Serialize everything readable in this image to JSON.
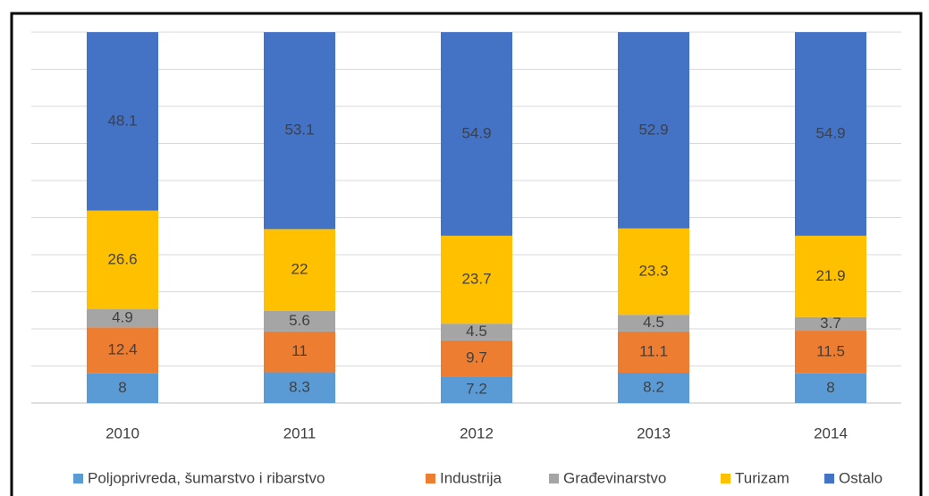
{
  "chart_data": {
    "type": "stacked_bar",
    "categories": [
      "2010",
      "2011",
      "2012",
      "2013",
      "2014"
    ],
    "series": [
      {
        "name": "Poljoprivreda, šumarstvo i ribarstvo",
        "color": "#5b9bd5",
        "values": [
          8,
          8.3,
          7.2,
          8.2,
          8
        ]
      },
      {
        "name": "Industrija",
        "color": "#ed7d31",
        "values": [
          12.4,
          11,
          9.7,
          11.1,
          11.5
        ]
      },
      {
        "name": "Građevinarstvo",
        "color": "#a5a5a5",
        "values": [
          4.9,
          5.6,
          4.5,
          4.5,
          3.7
        ]
      },
      {
        "name": "Turizam",
        "color": "#ffc000",
        "values": [
          26.6,
          22,
          23.7,
          23.3,
          21.9
        ]
      },
      {
        "name": "Ostalo",
        "color": "#4472c4",
        "values": [
          48.1,
          53.1,
          54.9,
          52.9,
          54.9
        ]
      }
    ],
    "ylim": [
      0,
      100
    ],
    "yticks": [
      0,
      10,
      20,
      30,
      40,
      50,
      60,
      70,
      80,
      90,
      100
    ],
    "grid": true,
    "legend": "bottom"
  }
}
